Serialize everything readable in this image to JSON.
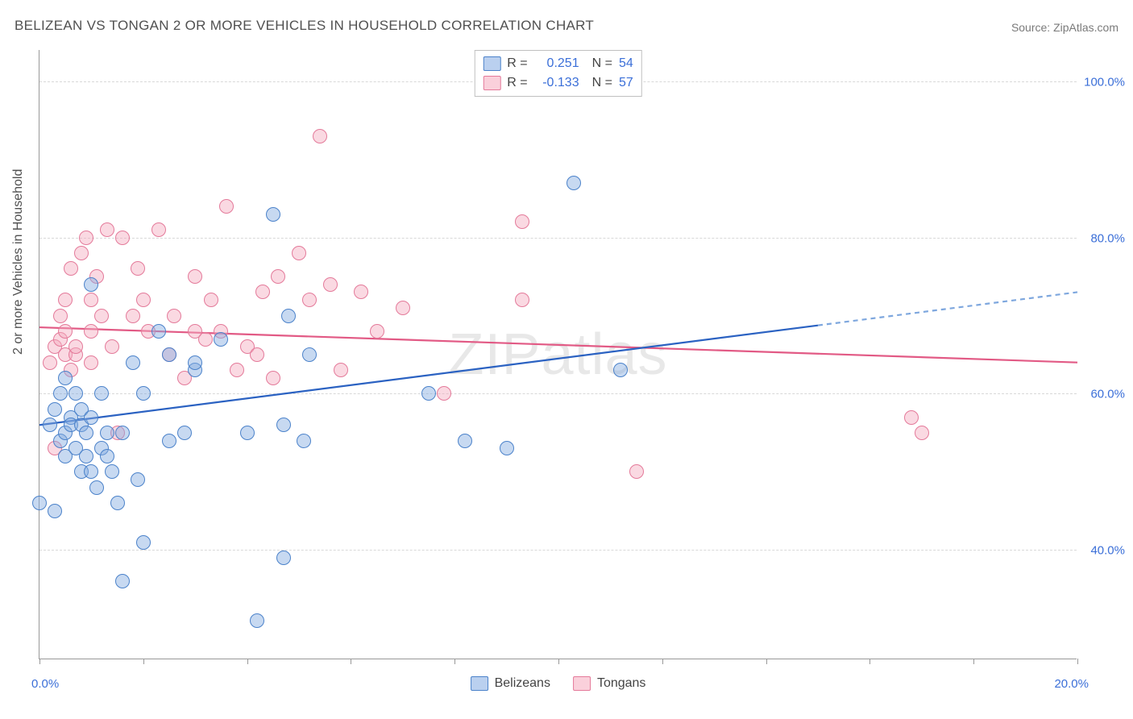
{
  "title": "BELIZEAN VS TONGAN 2 OR MORE VEHICLES IN HOUSEHOLD CORRELATION CHART",
  "source": "Source: ZipAtlas.com",
  "y_axis_label": "2 or more Vehicles in Household",
  "watermark": "ZIPatlas",
  "chart": {
    "type": "scatter",
    "xlim": [
      0.0,
      20.0
    ],
    "ylim": [
      26.0,
      104.0
    ],
    "x_tick_label_min": "0.0%",
    "x_tick_label_max": "20.0%",
    "x_ticks": [
      0,
      2,
      4,
      6,
      8,
      10,
      12,
      14,
      16,
      18,
      20
    ],
    "y_gridlines": [
      40.0,
      60.0,
      80.0,
      100.0
    ],
    "y_tick_labels": [
      "40.0%",
      "60.0%",
      "80.0%",
      "100.0%"
    ],
    "background_color": "#ffffff",
    "grid_color": "#d8d8d8",
    "axis_color": "#999999",
    "label_color": "#505050",
    "tick_label_color": "#3b6fd8",
    "tick_label_fontsize": 15,
    "title_fontsize": 17,
    "marker_radius": 9,
    "marker_opacity": 0.45
  },
  "series": {
    "blue": {
      "name": "Belizeans",
      "R_label": "R =",
      "R_value": "0.251",
      "N_label": "N =",
      "N_value": "54",
      "fill_color": "#82aae1",
      "border_color": "#4b82ca",
      "trend": {
        "y_at_x0": 56.0,
        "y_at_x20": 73.0,
        "solid_until_x": 15.0,
        "solid_color": "#2b62c2",
        "dash_color": "#7ea7de",
        "width": 2.2
      },
      "points": [
        [
          0.2,
          56
        ],
        [
          0.3,
          58
        ],
        [
          0.4,
          54
        ],
        [
          0.4,
          60
        ],
        [
          0.5,
          55
        ],
        [
          0.5,
          62
        ],
        [
          0.5,
          52
        ],
        [
          0.6,
          57
        ],
        [
          0.6,
          56
        ],
        [
          0.7,
          60
        ],
        [
          0.7,
          53
        ],
        [
          0.8,
          58
        ],
        [
          0.8,
          56
        ],
        [
          0.8,
          50
        ],
        [
          0.9,
          52
        ],
        [
          0.9,
          55
        ],
        [
          1.0,
          57
        ],
        [
          1.0,
          50
        ],
        [
          1.0,
          74
        ],
        [
          1.1,
          48
        ],
        [
          1.2,
          60
        ],
        [
          1.2,
          53
        ],
        [
          1.3,
          55
        ],
        [
          1.3,
          52
        ],
        [
          1.4,
          50
        ],
        [
          0.0,
          46
        ],
        [
          1.6,
          55
        ],
        [
          1.6,
          36
        ],
        [
          1.8,
          64
        ],
        [
          1.9,
          49
        ],
        [
          2.0,
          41
        ],
        [
          2.0,
          60
        ],
        [
          2.3,
          68
        ],
        [
          2.5,
          54
        ],
        [
          2.5,
          65
        ],
        [
          2.8,
          55
        ],
        [
          3.0,
          63
        ],
        [
          3.0,
          64
        ],
        [
          3.5,
          67
        ],
        [
          4.0,
          55
        ],
        [
          4.2,
          31
        ],
        [
          4.5,
          83
        ],
        [
          4.7,
          56
        ],
        [
          4.7,
          39
        ],
        [
          4.8,
          70
        ],
        [
          5.1,
          54
        ],
        [
          5.2,
          65
        ],
        [
          7.5,
          60
        ],
        [
          8.2,
          54
        ],
        [
          9.0,
          53
        ],
        [
          10.3,
          87
        ],
        [
          11.2,
          63
        ],
        [
          0.3,
          45
        ],
        [
          1.5,
          46
        ]
      ]
    },
    "pink": {
      "name": "Tongans",
      "R_label": "R =",
      "R_value": "-0.133",
      "N_label": "N =",
      "N_value": "57",
      "fill_color": "#f5aabf",
      "border_color": "#e47a9a",
      "trend": {
        "y_at_x0": 68.5,
        "y_at_x20": 64.0,
        "solid_until_x": 20.0,
        "solid_color": "#e25a85",
        "dash_color": "#e25a85",
        "width": 2.2
      },
      "points": [
        [
          0.2,
          64
        ],
        [
          0.3,
          66
        ],
        [
          0.3,
          53
        ],
        [
          0.4,
          67
        ],
        [
          0.4,
          70
        ],
        [
          0.5,
          65
        ],
        [
          0.5,
          68
        ],
        [
          0.5,
          72
        ],
        [
          0.6,
          63
        ],
        [
          0.6,
          76
        ],
        [
          0.7,
          65
        ],
        [
          0.7,
          66
        ],
        [
          0.8,
          78
        ],
        [
          0.9,
          80
        ],
        [
          1.0,
          68
        ],
        [
          1.0,
          72
        ],
        [
          1.0,
          64
        ],
        [
          1.1,
          75
        ],
        [
          1.2,
          70
        ],
        [
          1.3,
          81
        ],
        [
          1.4,
          66
        ],
        [
          1.5,
          55
        ],
        [
          1.6,
          80
        ],
        [
          1.8,
          70
        ],
        [
          1.9,
          76
        ],
        [
          2.0,
          72
        ],
        [
          2.1,
          68
        ],
        [
          2.3,
          81
        ],
        [
          2.5,
          65
        ],
        [
          2.6,
          70
        ],
        [
          2.8,
          62
        ],
        [
          3.0,
          68
        ],
        [
          3.0,
          75
        ],
        [
          3.2,
          67
        ],
        [
          3.3,
          72
        ],
        [
          3.5,
          68
        ],
        [
          3.6,
          84
        ],
        [
          3.8,
          63
        ],
        [
          4.0,
          66
        ],
        [
          4.2,
          65
        ],
        [
          4.5,
          62
        ],
        [
          4.6,
          75
        ],
        [
          5.0,
          78
        ],
        [
          5.2,
          72
        ],
        [
          5.4,
          93
        ],
        [
          5.6,
          74
        ],
        [
          5.8,
          63
        ],
        [
          6.2,
          73
        ],
        [
          6.5,
          68
        ],
        [
          7.0,
          71
        ],
        [
          7.8,
          60
        ],
        [
          9.3,
          82
        ],
        [
          9.3,
          72
        ],
        [
          11.5,
          50
        ],
        [
          16.8,
          57
        ],
        [
          17.0,
          55
        ],
        [
          4.3,
          73
        ]
      ]
    }
  }
}
